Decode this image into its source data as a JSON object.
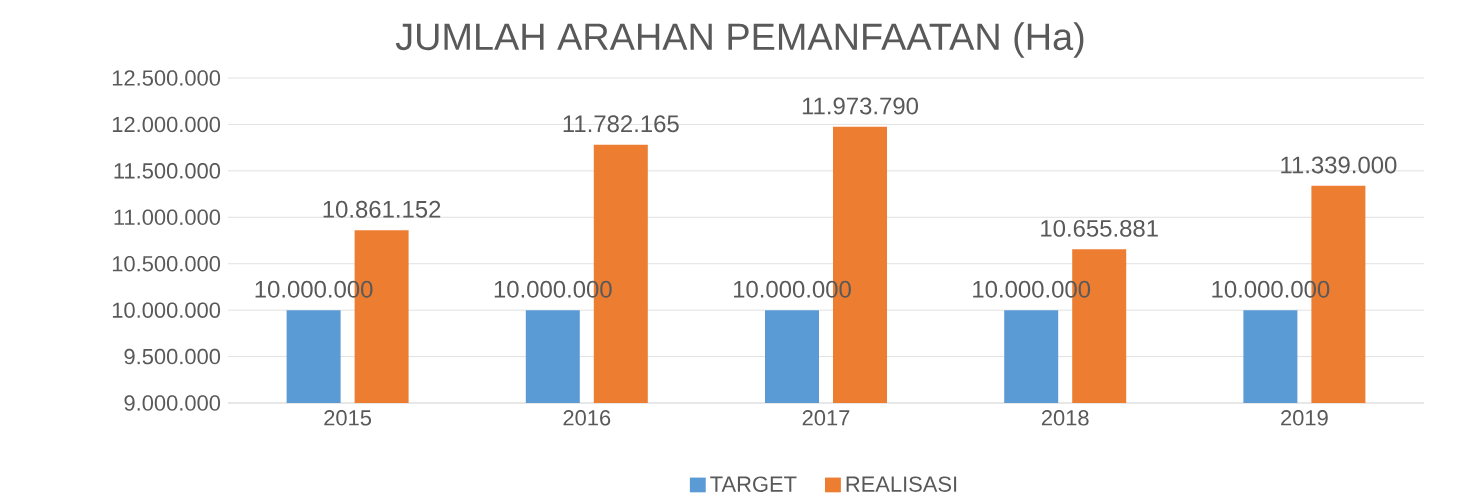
{
  "chart_data": {
    "type": "bar",
    "title": "JUMLAH ARAHAN PEMANFAATAN (Ha)",
    "categories": [
      "2015",
      "2016",
      "2017",
      "2018",
      "2019"
    ],
    "series": [
      {
        "name": "TARGET",
        "color": "#5b9bd5",
        "values": [
          10000000,
          10000000,
          10000000,
          10000000,
          10000000
        ],
        "value_labels": [
          "10.000.000",
          "10.000.000",
          "10.000.000",
          "10.000.000",
          "10.000.000"
        ]
      },
      {
        "name": "REALISASI",
        "color": "#ed7d31",
        "values": [
          10861152,
          11782165,
          11973790,
          10655881,
          11339000
        ],
        "value_labels": [
          "10.861.152",
          "11.782.165",
          "11.973.790",
          "10.655.881",
          "11.339.000"
        ]
      }
    ],
    "ylim": [
      9000000,
      12500000
    ],
    "yticks": [
      {
        "value": 9000000,
        "label": "9.000.000"
      },
      {
        "value": 9500000,
        "label": "9.500.000"
      },
      {
        "value": 10000000,
        "label": "10.000.000"
      },
      {
        "value": 10500000,
        "label": "10.500.000"
      },
      {
        "value": 11000000,
        "label": "11.000.000"
      },
      {
        "value": 11500000,
        "label": "11.500.000"
      },
      {
        "value": 12000000,
        "label": "12.000.000"
      },
      {
        "value": 12500000,
        "label": "12.500.000"
      }
    ],
    "grid": "y",
    "legend": "bottom"
  }
}
